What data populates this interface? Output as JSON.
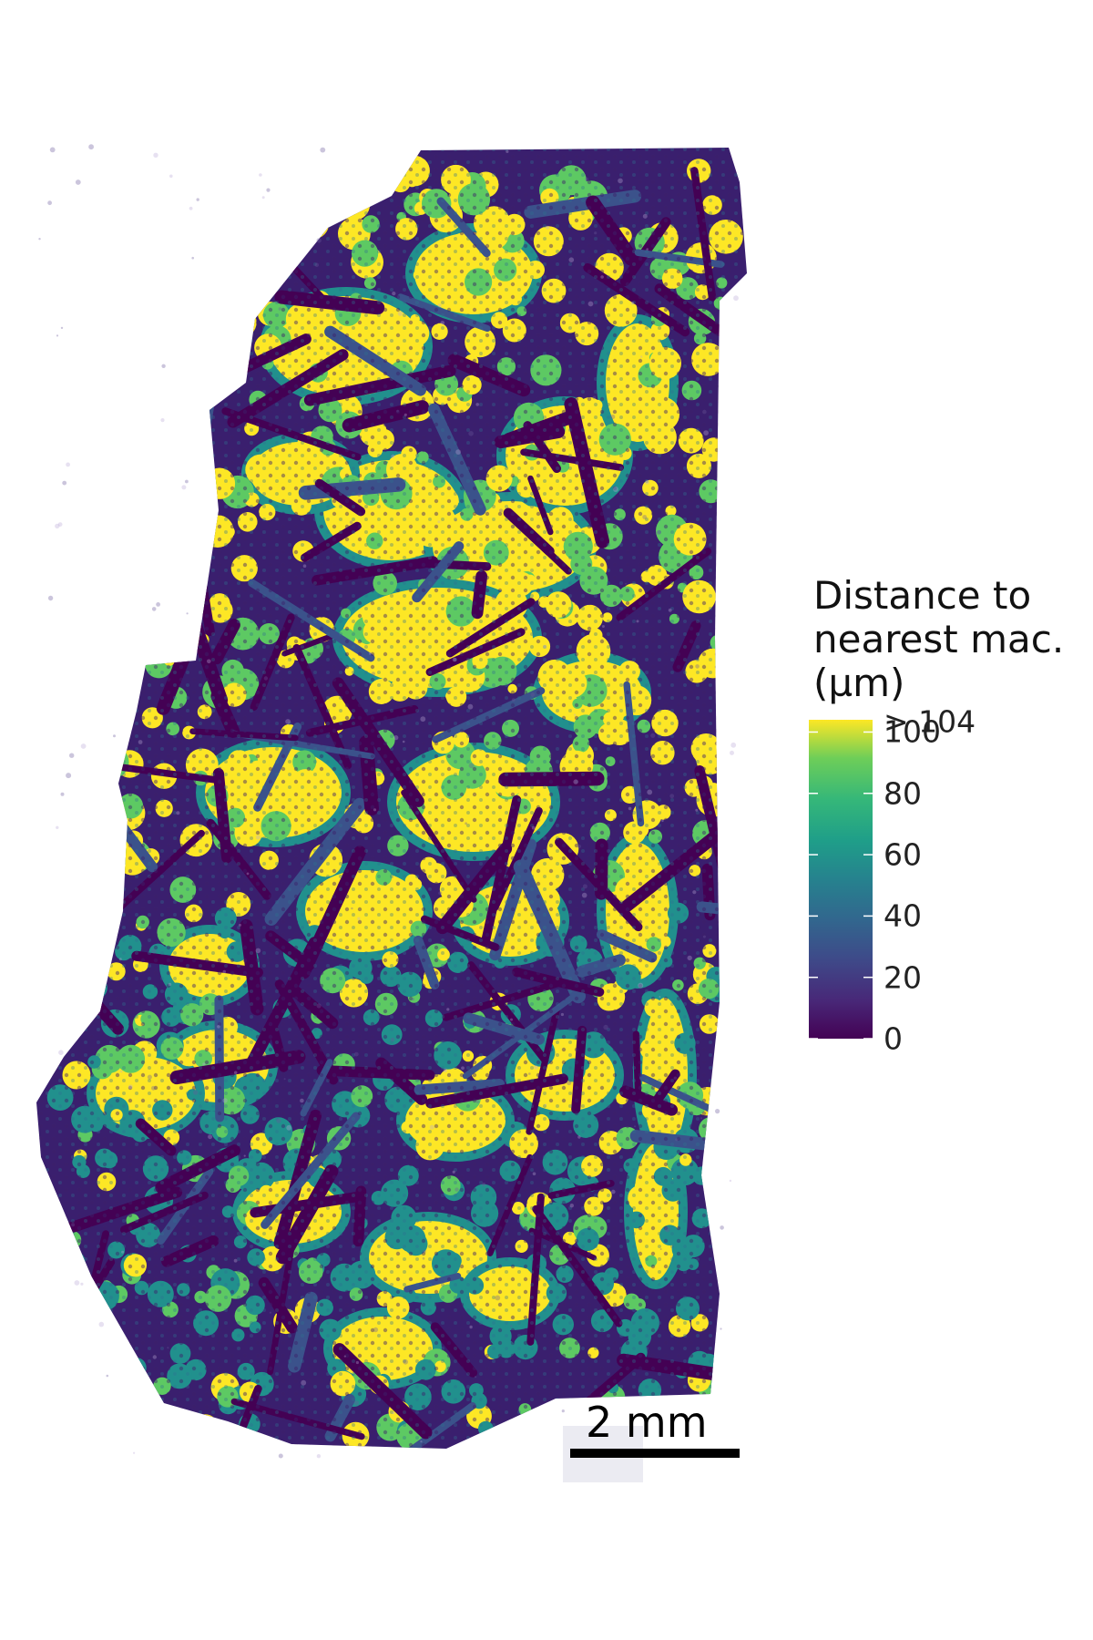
{
  "chart_data": {
    "type": "heatmap",
    "description_kind": "spatial tissue map, cells colored by distance",
    "colormap": "viridis",
    "colorbar": {
      "title_lines": [
        "Distance to",
        "nearest mac.",
        "(µm)"
      ],
      "range": [
        0,
        104
      ],
      "ticks": [
        0,
        20,
        40,
        60,
        80,
        100
      ],
      "tick_labels": [
        "0",
        "20",
        "40",
        "60",
        "80",
        "100"
      ],
      "max_label": "> 104"
    },
    "scale_bar": {
      "label": "2 mm",
      "length_mm": 2
    },
    "colors": {
      "low": "#440154",
      "mid_low": "#3b528b",
      "mid": "#21908d",
      "mid_high": "#5dc963",
      "high": "#fde725"
    }
  }
}
